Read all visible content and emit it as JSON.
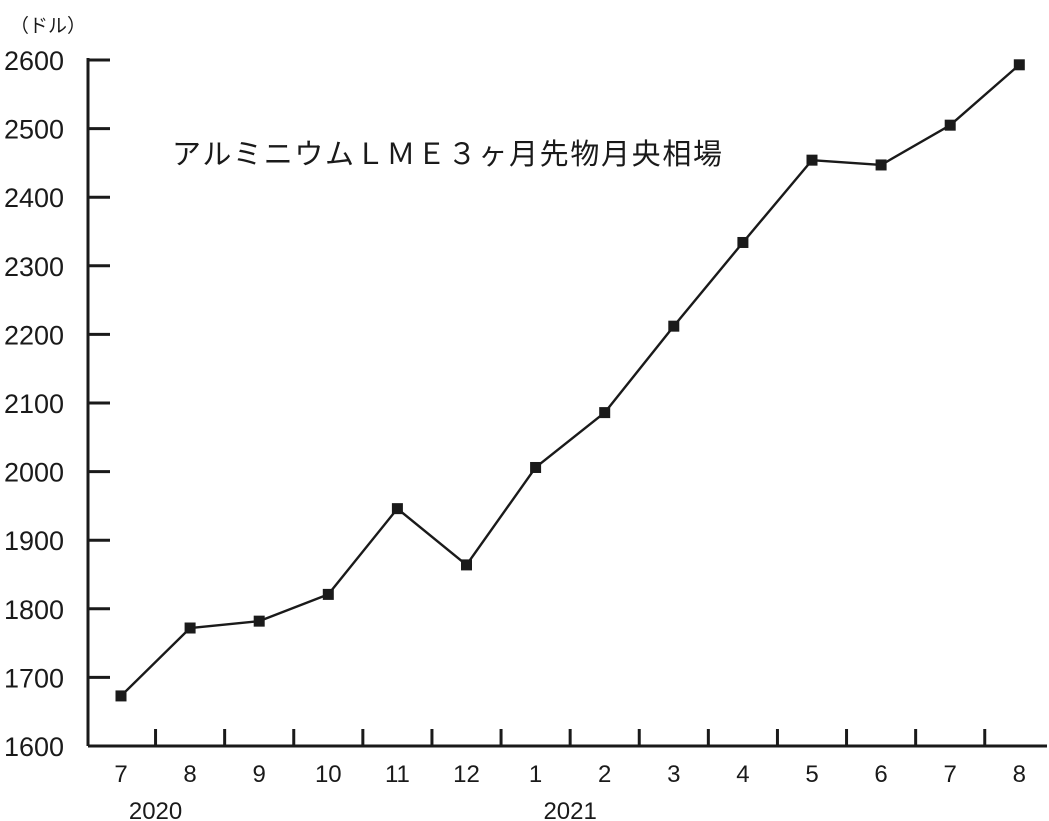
{
  "chart_data": {
    "type": "line",
    "title": "アルミニウムＬＭＥ３ヶ月先物月央相場",
    "ylabel": "（ドル）",
    "xlabel": "",
    "categories": [
      "7",
      "8",
      "9",
      "10",
      "11",
      "12",
      "1",
      "2",
      "3",
      "4",
      "5",
      "6",
      "7",
      "8"
    ],
    "year_labels": [
      {
        "text": "2020",
        "category_index": 0.5
      },
      {
        "text": "2021",
        "category_index": 6.5
      }
    ],
    "yticks": [
      "1600",
      "1700",
      "1800",
      "1900",
      "2000",
      "2100",
      "2200",
      "2300",
      "2400",
      "2500",
      "2600"
    ],
    "ylim": [
      1600,
      2600
    ],
    "series": [
      {
        "values": [
          1673,
          1772,
          1782,
          1821,
          1946,
          1864,
          2006,
          2086,
          2212,
          2334,
          2454,
          2447,
          2505,
          2593
        ]
      }
    ],
    "marker": "square",
    "grid": false,
    "colors": {
      "line": "#1a1a1a",
      "marker": "#1a1a1a",
      "axis": "#1a1a1a"
    }
  }
}
